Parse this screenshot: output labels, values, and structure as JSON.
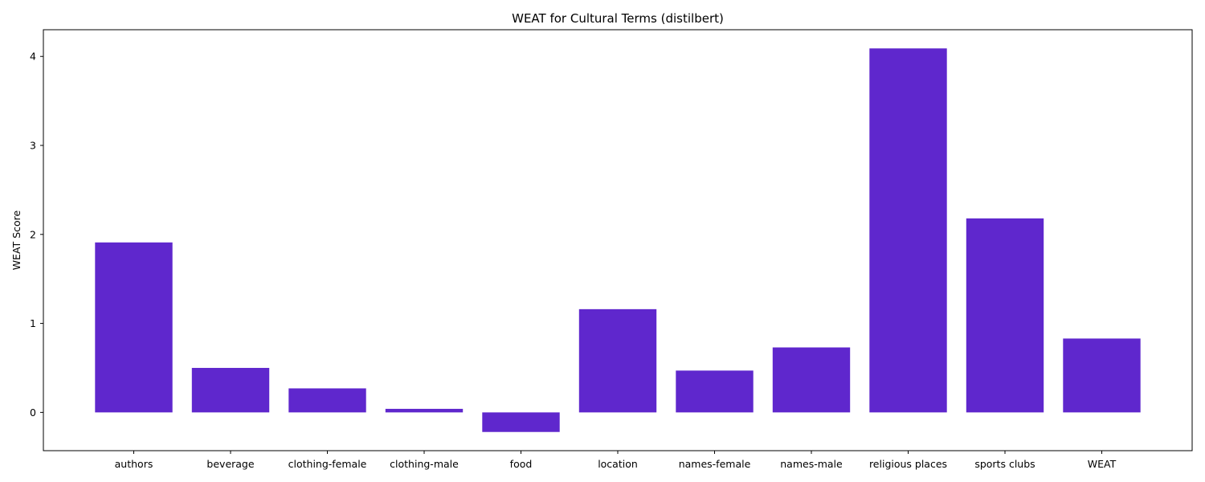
{
  "chart_data": {
    "type": "bar",
    "title": "WEAT for Cultural Terms (distilbert)",
    "xlabel": "",
    "ylabel": "WEAT Score",
    "categories": [
      "authors",
      "beverage",
      "clothing-female",
      "clothing-male",
      "food",
      "location",
      "names-female",
      "names-male",
      "religious places",
      "sports clubs",
      "WEAT"
    ],
    "values": [
      1.91,
      0.5,
      0.27,
      0.04,
      -0.22,
      1.16,
      0.47,
      0.73,
      4.09,
      2.18,
      0.83
    ],
    "ylim": [
      -0.43,
      4.3
    ],
    "yticks": [
      0,
      1,
      2,
      3,
      4
    ],
    "grid": false,
    "legend": "none",
    "bar_color": "#5f27cd"
  }
}
